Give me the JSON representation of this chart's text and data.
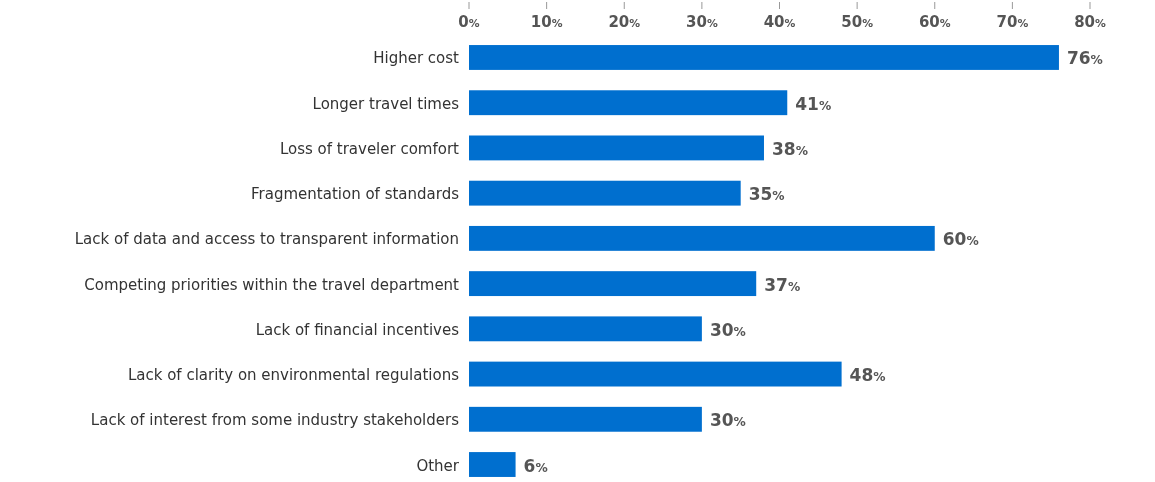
{
  "chart_data": {
    "type": "bar",
    "orientation": "horizontal",
    "categories": [
      "Higher cost",
      "Longer travel times",
      "Loss of traveler comfort",
      "Fragmentation of standards",
      "Lack of data and access to transparent information",
      "Competing priorities within the travel department",
      "Lack of financial incentives",
      "Lack of clarity on environmental regulations ",
      "Lack of interest from some industry stakeholders",
      "Other"
    ],
    "values": [
      76,
      41,
      38,
      35,
      60,
      37,
      30,
      48,
      30,
      6
    ],
    "value_labels": [
      "76%",
      "41%",
      "38%",
      "35%",
      "60%",
      "37%",
      "30%",
      "48%",
      "30%",
      "6%"
    ],
    "color": "#006fcf",
    "xlim": [
      0,
      80
    ],
    "xticks": [
      {
        "value": 0,
        "label": "0%"
      },
      {
        "value": 10,
        "label": "10%"
      },
      {
        "value": 20,
        "label": "20%"
      },
      {
        "value": 30,
        "label": "30%"
      },
      {
        "value": 40,
        "label": "40%"
      },
      {
        "value": 50,
        "label": "50%"
      },
      {
        "value": 60,
        "label": "60%"
      },
      {
        "value": 70,
        "label": "70%"
      },
      {
        "value": 80,
        "label": "80%"
      }
    ],
    "xlabel": null
  }
}
